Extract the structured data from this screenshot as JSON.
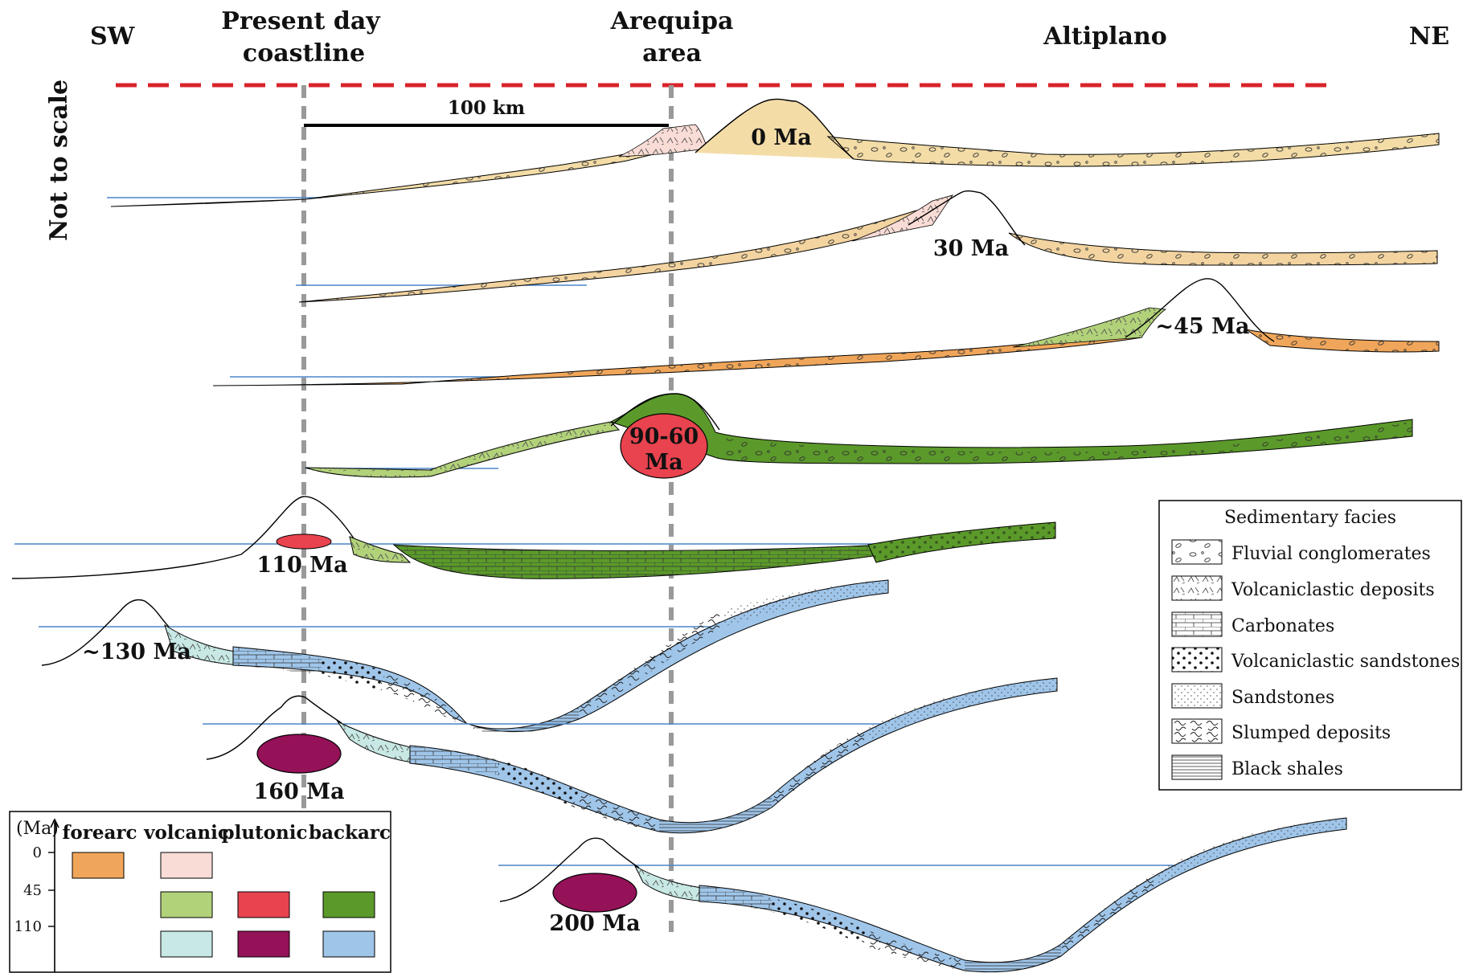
{
  "headings": {
    "sw": "SW",
    "coast_1": "Present day",
    "coast_2": "coastline",
    "arequipa_1": "Arequipa",
    "arequipa_2": "area",
    "altiplano": "Altiplano",
    "ne": "NE",
    "not_to_scale": "Not to scale",
    "scale_bar": "100 km"
  },
  "stages": [
    {
      "age": "0 Ma"
    },
    {
      "age": "30 Ma"
    },
    {
      "age": "~45 Ma"
    },
    {
      "age_1": "90-60",
      "age_2": "Ma"
    },
    {
      "age": "110 Ma"
    },
    {
      "age": "~130 Ma"
    },
    {
      "age": "160 Ma"
    },
    {
      "age": "200 Ma"
    }
  ],
  "facies_legend": {
    "title": "Sedimentary facies",
    "items": [
      {
        "label": "Fluvial conglomerates",
        "pattern": "conglomerate"
      },
      {
        "label": "Volcaniclastic deposits",
        "pattern": "volcaniclastic"
      },
      {
        "label": "Carbonates",
        "pattern": "carbonate"
      },
      {
        "label": "Volcaniclastic sandstones",
        "pattern": "volc-sandstone"
      },
      {
        "label": "Sandstones",
        "pattern": "sandstone"
      },
      {
        "label": "Slumped deposits",
        "pattern": "slumped"
      },
      {
        "label": "Black shales",
        "pattern": "black-shale"
      }
    ]
  },
  "color_legend": {
    "axis_unit": "(Ma)",
    "columns": [
      "forearc",
      "volcanic",
      "plutonic",
      "backarc"
    ],
    "ticks": [
      "0",
      "45",
      "110"
    ],
    "colors": {
      "forearc_0_45": "#f0a65a",
      "volcanic_0_45": "#f9dcd6",
      "volcanic_45_110": "#b2d27a",
      "plutonic_45_110": "#e8434f",
      "backarc_45_110": "#5b9a2a",
      "volcanic_pre110": "#c7e8e4",
      "plutonic_pre110": "#951158",
      "backarc_pre110": "#9fc5e9"
    }
  },
  "colors": {
    "sea_level_reference": "#d8232a",
    "guide_lines": "#999999",
    "sea_level_lines": "#4a86c8",
    "conglomerate_fill": "#f3dca6",
    "forearc_late": "#f3d4a0"
  }
}
